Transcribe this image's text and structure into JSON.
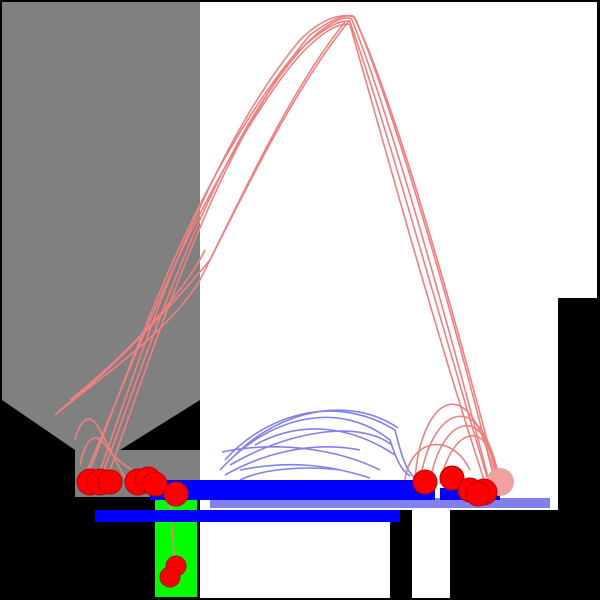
{
  "scene": {
    "background_color": "#000000",
    "open_area_color": "#ffffff",
    "start_zone_color": "#808080",
    "goal_zone_color": "#00ff00",
    "platform_color": "#0000ff",
    "ghost_platform_color": "#8080f0",
    "agent_color": "#ff0000",
    "goal_trail_color": "#f08080",
    "platform_trail_color": "#8080f0",
    "faded_agent_color": "#f0a0a0"
  }
}
